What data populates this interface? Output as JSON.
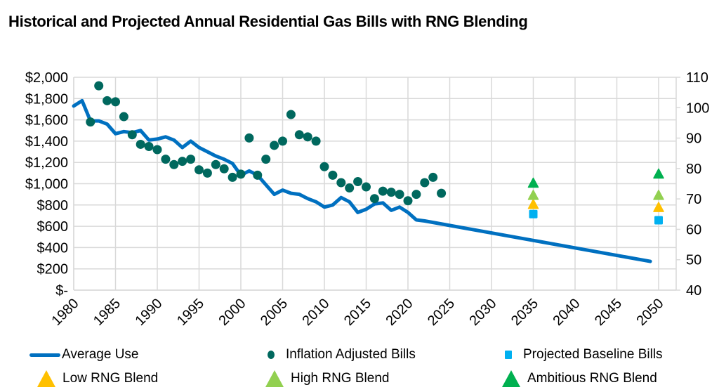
{
  "chart_data": {
    "type": "line",
    "title": "Historical and Projected Annual Residential Gas Bills with RNG Blending",
    "xlabel": "",
    "ylabel": "",
    "xlim": [
      1980,
      2052
    ],
    "ylim": [
      0,
      2000
    ],
    "y2lim": [
      40,
      110
    ],
    "grid": true,
    "x_ticks": [
      "1980",
      "1985",
      "1990",
      "1995",
      "2000",
      "2005",
      "2010",
      "2015",
      "2020",
      "2025",
      "2030",
      "2035",
      "2040",
      "2045",
      "2050"
    ],
    "y_ticks": [
      "$-",
      "$200",
      "$400",
      "$600",
      "$800",
      "$1,000",
      "$1,200",
      "$1,400",
      "$1,600",
      "$1,800",
      "$2,000"
    ],
    "y_tick_values": [
      0,
      200,
      400,
      600,
      800,
      1000,
      1200,
      1400,
      1600,
      1800,
      2000
    ],
    "y2_ticks": [
      "40",
      "50",
      "60",
      "70",
      "80",
      "90",
      "100",
      "110"
    ],
    "y2_tick_values": [
      40,
      50,
      60,
      70,
      80,
      90,
      100,
      110
    ],
    "legend_position": "bottom",
    "series": [
      {
        "name": "Average Use",
        "kind": "line",
        "axis": "left",
        "color": "#0070C0",
        "x": [
          1980,
          1981,
          1982,
          1983,
          1984,
          1985,
          1986,
          1987,
          1988,
          1989,
          1990,
          1991,
          1992,
          1993,
          1994,
          1995,
          1996,
          1997,
          1998,
          1999,
          2000,
          2001,
          2002,
          2003,
          2004,
          2005,
          2006,
          2007,
          2008,
          2009,
          2010,
          2011,
          2012,
          2013,
          2014,
          2015,
          2016,
          2017,
          2018,
          2019,
          2020,
          2021,
          2022,
          2049
        ],
        "values": [
          1730,
          1780,
          1590,
          1590,
          1560,
          1470,
          1490,
          1480,
          1500,
          1410,
          1420,
          1440,
          1410,
          1340,
          1400,
          1340,
          1300,
          1260,
          1230,
          1190,
          1080,
          1120,
          1080,
          990,
          900,
          940,
          910,
          900,
          860,
          830,
          780,
          800,
          870,
          830,
          730,
          760,
          810,
          820,
          750,
          780,
          730,
          660,
          650,
          270
        ]
      },
      {
        "name": "Inflation Adjusted Bills",
        "kind": "scatter-circle",
        "axis": "left",
        "color": "#00685E",
        "x": [
          1982,
          1983,
          1984,
          1985,
          1986,
          1987,
          1988,
          1989,
          1990,
          1991,
          1992,
          1993,
          1994,
          1995,
          1996,
          1997,
          1998,
          1999,
          2000,
          2001,
          2002,
          2003,
          2004,
          2005,
          2006,
          2007,
          2008,
          2009,
          2010,
          2011,
          2012,
          2013,
          2014,
          2015,
          2016,
          2017,
          2018,
          2019,
          2020,
          2021,
          2022,
          2023,
          2024
        ],
        "values": [
          1580,
          1920,
          1780,
          1770,
          1630,
          1460,
          1370,
          1350,
          1320,
          1230,
          1180,
          1210,
          1230,
          1130,
          1100,
          1180,
          1140,
          1060,
          1090,
          1430,
          1080,
          1230,
          1360,
          1400,
          1650,
          1460,
          1440,
          1400,
          1160,
          1080,
          1010,
          960,
          1020,
          970,
          860,
          930,
          920,
          900,
          840,
          900,
          1010,
          1060,
          910
        ]
      },
      {
        "name": "Projected Baseline Bills",
        "kind": "scatter-square",
        "axis": "right",
        "color": "#00B0F0",
        "x": [
          2035,
          2050
        ],
        "values": [
          65,
          63
        ]
      },
      {
        "name": "Low RNG Blend",
        "kind": "scatter-triangle",
        "axis": "right",
        "color": "#FFC000",
        "x": [
          2035,
          2050
        ],
        "values": [
          68,
          67
        ]
      },
      {
        "name": "High RNG Blend",
        "kind": "scatter-triangle",
        "axis": "right",
        "color": "#92D050",
        "x": [
          2035,
          2050
        ],
        "values": [
          71,
          71
        ]
      },
      {
        "name": "Ambitious RNG Blend",
        "kind": "scatter-triangle",
        "axis": "right",
        "color": "#00B050",
        "x": [
          2035,
          2050
        ],
        "values": [
          75,
          78
        ]
      }
    ]
  }
}
